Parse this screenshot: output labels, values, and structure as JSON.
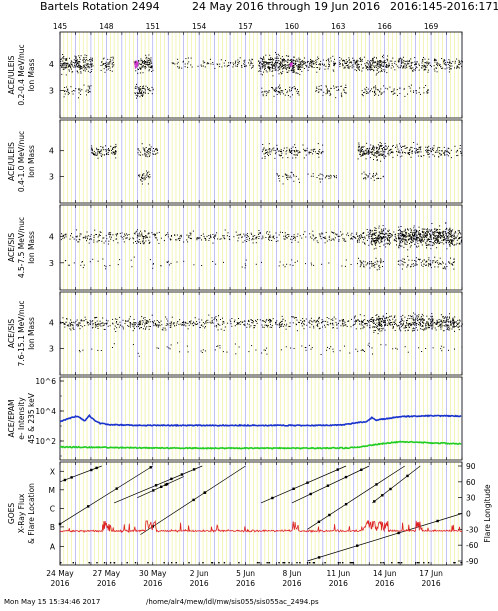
{
  "header": {
    "title": "Bartels Rotation 2494",
    "dates": "24 May 2016 through 19 Jun 2016",
    "doy": "2016:145-2016:171"
  },
  "footer": {
    "timestamp": "Mon May 15 15:34:46 2017",
    "path": "/home/alr4/mew/ldl/mw/sis055/sis055ac_2494.ps"
  },
  "chart_data": [
    {
      "type": "scatter",
      "panel": "ULEIS 0.2-0.4",
      "ylabel": [
        "ACE/ULEIS",
        "0.2-0.4 MeV/nuc",
        "Ion Mass"
      ],
      "yticks": [
        "4",
        "3"
      ],
      "x_start_day": 145,
      "x_end_day": 171,
      "bands": [
        {
          "y": 4,
          "segments": [
            [
              145.0,
              147.1,
              1.0
            ],
            [
              147.6,
              148.5,
              0.6
            ],
            [
              149.8,
              150.4,
              0.8
            ],
            [
              150.4,
              151.0,
              1.1
            ],
            [
              152.0,
              156.0,
              0.15
            ],
            [
              156.0,
              157.5,
              0.3
            ],
            [
              157.8,
              160.6,
              1.2
            ],
            [
              160.6,
              162.8,
              0.5
            ],
            [
              163.0,
              165.0,
              0.6
            ],
            [
              165.0,
              166.2,
              1.0
            ],
            [
              166.2,
              168.0,
              0.5
            ],
            [
              168.0,
              171.0,
              0.45
            ]
          ]
        },
        {
          "y": 3,
          "segments": [
            [
              145.2,
              147.0,
              0.25
            ],
            [
              149.8,
              150.4,
              0.9
            ],
            [
              150.4,
              151.0,
              0.3
            ],
            [
              158.0,
              160.5,
              0.3
            ],
            [
              161.5,
              163.5,
              0.3
            ],
            [
              164.5,
              166.0,
              0.3
            ],
            [
              166.0,
              169.0,
              0.15
            ]
          ]
        }
      ],
      "highlight": {
        "x": 149.9,
        "x2": 159.9,
        "color": "#cc33cc"
      }
    },
    {
      "type": "scatter",
      "panel": "ULEIS 0.4-1.0",
      "ylabel": [
        "ACE/ULEIS",
        "0.4-1.0 MeV/nuc",
        "Ion Mass"
      ],
      "yticks": [
        "4",
        "3"
      ],
      "bands": [
        {
          "y": 4,
          "segments": [
            [
              147.0,
              148.6,
              0.6
            ],
            [
              150.0,
              150.8,
              0.5
            ],
            [
              150.8,
              151.3,
              0.4
            ],
            [
              158.0,
              160.5,
              0.4
            ],
            [
              160.5,
              162.0,
              0.25
            ],
            [
              164.2,
              166.0,
              0.9
            ],
            [
              166.0,
              168.0,
              0.4
            ],
            [
              168.0,
              171.0,
              0.35
            ]
          ]
        },
        {
          "y": 3,
          "segments": [
            [
              150.0,
              150.8,
              0.5
            ],
            [
              159.0,
              160.5,
              0.2
            ],
            [
              161.0,
              163.0,
              0.15
            ],
            [
              164.5,
              166.0,
              0.2
            ]
          ]
        }
      ]
    },
    {
      "type": "scatter",
      "panel": "SIS 4.5-7.5",
      "ylabel": [
        "ACE/SIS",
        "4.5-7.5 MeV/nuc",
        "Ion Mass"
      ],
      "yticks": [
        "4",
        "3"
      ],
      "bands": [
        {
          "y": 4,
          "segments": [
            [
              145.0,
              149.8,
              0.25
            ],
            [
              149.8,
              150.8,
              0.6
            ],
            [
              150.8,
              157.0,
              0.2
            ],
            [
              157.0,
              164.2,
              0.25
            ],
            [
              164.2,
              165.0,
              0.5
            ],
            [
              165.0,
              166.2,
              1.4
            ],
            [
              166.2,
              166.8,
              0.6
            ],
            [
              166.8,
              170.5,
              1.5
            ],
            [
              170.5,
              171.0,
              0.6
            ]
          ]
        },
        {
          "y": 3,
          "segments": [
            [
              145.0,
              164.0,
              0.04
            ],
            [
              164.2,
              166.0,
              0.3
            ],
            [
              166.8,
              170.5,
              0.3
            ]
          ]
        }
      ]
    },
    {
      "type": "scatter",
      "panel": "SIS 7.6-15.1",
      "ylabel": [
        "ACE/SIS",
        "7.6-15.1 MeV/nuc",
        "Ion Mass"
      ],
      "yticks": [
        "4",
        "3"
      ],
      "bands": [
        {
          "y": 4,
          "segments": [
            [
              145.0,
              149.5,
              0.35
            ],
            [
              149.5,
              151.0,
              0.5
            ],
            [
              151.0,
              164.0,
              0.3
            ],
            [
              164.0,
              165.0,
              0.5
            ],
            [
              165.0,
              166.2,
              1.0
            ],
            [
              166.2,
              167.5,
              0.6
            ],
            [
              167.5,
              170.5,
              0.9
            ],
            [
              170.5,
              171.0,
              0.4
            ]
          ]
        },
        {
          "y": 3,
          "segments": [
            [
              145.0,
              171.0,
              0.04
            ]
          ]
        }
      ]
    },
    {
      "type": "line",
      "panel": "EPAM",
      "ylabel": [
        "ACE/EPAM",
        "e- Intensity",
        "45 & 235 keV"
      ],
      "yscale": "log",
      "yticks": [
        "10^6",
        "10^4",
        "10^2"
      ],
      "ylim": [
        10,
        1000000
      ],
      "series": [
        {
          "color": "#1a33cc",
          "x": [
            145.0,
            145.3,
            145.8,
            146.1,
            146.4,
            146.6,
            146.9,
            147.2,
            147.6,
            148.0,
            148.3,
            148.8,
            149.5,
            150.5,
            152.0,
            154.0,
            156.0,
            158.0,
            160.0,
            162.0,
            163.0,
            163.6,
            164.0,
            164.8,
            165.2,
            165.4,
            165.6,
            166.0,
            167.0,
            168.0,
            169.0,
            170.0,
            171.0
          ],
          "y": [
            2000,
            2600,
            3800,
            4500,
            3000,
            2200,
            5000,
            2500,
            1500,
            1300,
            1200,
            1200,
            1150,
            1100,
            1100,
            1100,
            1100,
            1100,
            1100,
            1100,
            1150,
            1300,
            1600,
            1900,
            3800,
            2400,
            2600,
            3000,
            4200,
            4600,
            4800,
            4700,
            4500
          ]
        },
        {
          "color": "#22cc22",
          "x": [
            145.0,
            147.0,
            150.0,
            155.0,
            160.0,
            163.5,
            164.5,
            165.2,
            166.0,
            167.0,
            168.0,
            169.0,
            170.0,
            171.0
          ],
          "y": [
            40,
            38,
            35,
            33,
            33,
            34,
            40,
            55,
            70,
            90,
            85,
            75,
            70,
            65
          ]
        }
      ]
    },
    {
      "type": "scatter",
      "panel": "GOES",
      "ylabel": [
        "GOES",
        "X-Ray Flux",
        "& Flare Location"
      ],
      "yticks": [
        "X",
        "M",
        "C",
        "B",
        "A"
      ],
      "y2label": "Flare Longitude",
      "y2ticks": [
        "90",
        "60",
        "30",
        "0",
        "-30",
        "-60",
        "-90"
      ],
      "xray_color": "#dd2222",
      "flare_tracks": [
        [
          145.0,
          60,
          147.7,
          90
        ],
        [
          145.0,
          -20,
          151.0,
          90
        ],
        [
          148.5,
          20,
          154.2,
          90
        ],
        [
          150.2,
          -40,
          157.0,
          90
        ],
        [
          150.0,
          30,
          153.0,
          70
        ],
        [
          158.0,
          20,
          163.5,
          90
        ],
        [
          160.0,
          20,
          165.0,
          90
        ],
        [
          161.0,
          -30,
          167.3,
          90
        ],
        [
          165.2,
          20,
          168.3,
          90
        ],
        [
          161.0,
          -90,
          171.0,
          0
        ]
      ]
    }
  ],
  "x_axis": {
    "top_doys": [
      "145",
      "148",
      "151",
      "154",
      "157",
      "160",
      "163",
      "166",
      "169"
    ],
    "bottom_labels": [
      {
        "day": "24 May",
        "year": "2016"
      },
      {
        "day": "27 May",
        "year": "2016"
      },
      {
        "day": "30 May",
        "year": "2016"
      },
      {
        "day": "2 Jun",
        "year": "2016"
      },
      {
        "day": "5 Jun",
        "year": "2016"
      },
      {
        "day": "8 Jun",
        "year": "2016"
      },
      {
        "day": "11 Jun",
        "year": "2016"
      },
      {
        "day": "14 Jun",
        "year": "2016"
      },
      {
        "day": "17 Jun",
        "year": "2016"
      }
    ]
  },
  "colors": {
    "grid_yellow": "#eaea77",
    "grid_blue": "#9999ee",
    "dots": "#000000"
  }
}
